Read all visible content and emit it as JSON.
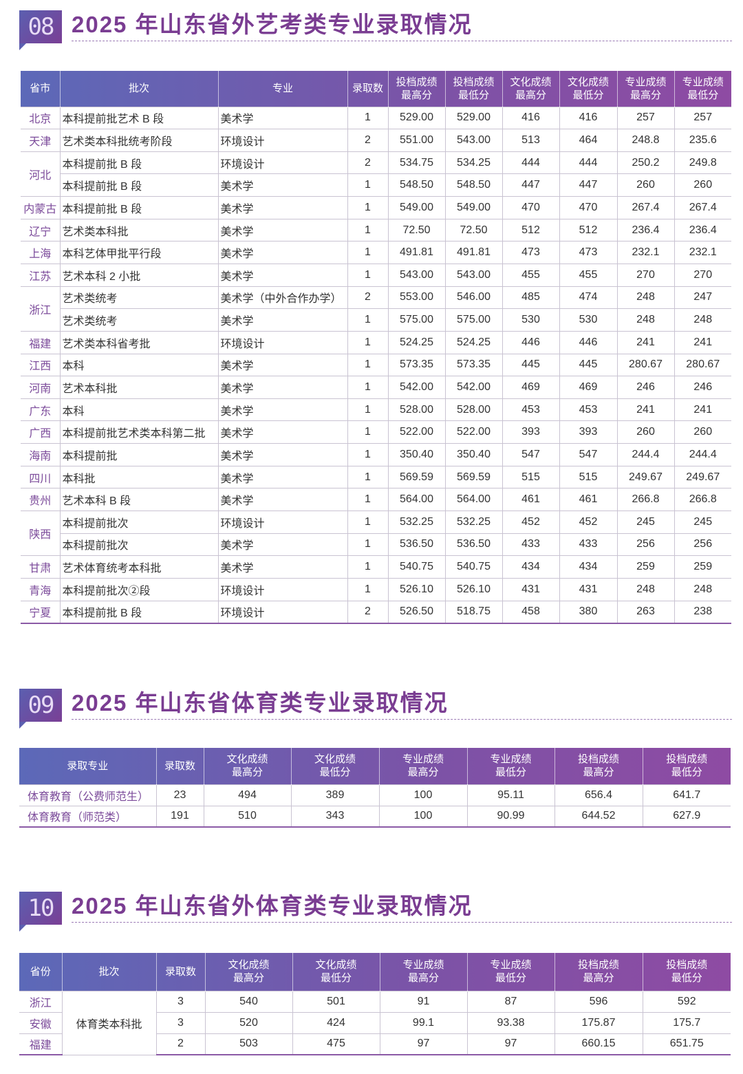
{
  "sections": [
    {
      "number": "08",
      "title": "2025 年山东省外艺考类专业录取情况",
      "table": {
        "headers": [
          "省市",
          "批次",
          "专业",
          "录取数",
          "投档成绩最高分",
          "投档成绩最低分",
          "文化成绩最高分",
          "文化成绩最低分",
          "专业成绩最高分",
          "专业成绩最低分"
        ],
        "rows": [
          [
            "北京",
            "本科提前批艺术 B 段",
            "美术学",
            "1",
            "529.00",
            "529.00",
            "416",
            "416",
            "257",
            "257"
          ],
          [
            "天津",
            "艺术类本科批统考阶段",
            "环境设计",
            "2",
            "551.00",
            "543.00",
            "513",
            "464",
            "248.8",
            "235.6"
          ],
          [
            "河北",
            "本科提前批 B 段",
            "环境设计",
            "2",
            "534.75",
            "534.25",
            "444",
            "444",
            "250.2",
            "249.8"
          ],
          [
            null,
            "本科提前批 B 段",
            "美术学",
            "1",
            "548.50",
            "548.50",
            "447",
            "447",
            "260",
            "260"
          ],
          [
            "内蒙古",
            "本科提前批 B 段",
            "美术学",
            "1",
            "549.00",
            "549.00",
            "470",
            "470",
            "267.4",
            "267.4"
          ],
          [
            "辽宁",
            "艺术类本科批",
            "美术学",
            "1",
            "72.50",
            "72.50",
            "512",
            "512",
            "236.4",
            "236.4"
          ],
          [
            "上海",
            "本科艺体甲批平行段",
            "美术学",
            "1",
            "491.81",
            "491.81",
            "473",
            "473",
            "232.1",
            "232.1"
          ],
          [
            "江苏",
            "艺术本科 2 小批",
            "美术学",
            "1",
            "543.00",
            "543.00",
            "455",
            "455",
            "270",
            "270"
          ],
          [
            "浙江",
            "艺术类统考",
            "美术学（中外合作办学）",
            "2",
            "553.00",
            "546.00",
            "485",
            "474",
            "248",
            "247"
          ],
          [
            null,
            "艺术类统考",
            "美术学",
            "1",
            "575.00",
            "575.00",
            "530",
            "530",
            "248",
            "248"
          ],
          [
            "福建",
            "艺术类本科省考批",
            "环境设计",
            "1",
            "524.25",
            "524.25",
            "446",
            "446",
            "241",
            "241"
          ],
          [
            "江西",
            "本科",
            "美术学",
            "1",
            "573.35",
            "573.35",
            "445",
            "445",
            "280.67",
            "280.67"
          ],
          [
            "河南",
            "艺术本科批",
            "美术学",
            "1",
            "542.00",
            "542.00",
            "469",
            "469",
            "246",
            "246"
          ],
          [
            "广东",
            "本科",
            "美术学",
            "1",
            "528.00",
            "528.00",
            "453",
            "453",
            "241",
            "241"
          ],
          [
            "广西",
            "本科提前批艺术类本科第二批",
            "美术学",
            "1",
            "522.00",
            "522.00",
            "393",
            "393",
            "260",
            "260"
          ],
          [
            "海南",
            "本科提前批",
            "美术学",
            "1",
            "350.40",
            "350.40",
            "547",
            "547",
            "244.4",
            "244.4"
          ],
          [
            "四川",
            "本科批",
            "美术学",
            "1",
            "569.59",
            "569.59",
            "515",
            "515",
            "249.67",
            "249.67"
          ],
          [
            "贵州",
            "艺术本科 B 段",
            "美术学",
            "1",
            "564.00",
            "564.00",
            "461",
            "461",
            "266.8",
            "266.8"
          ],
          [
            "陕西",
            "本科提前批次",
            "环境设计",
            "1",
            "532.25",
            "532.25",
            "452",
            "452",
            "245",
            "245"
          ],
          [
            null,
            "本科提前批次",
            "美术学",
            "1",
            "536.50",
            "536.50",
            "433",
            "433",
            "256",
            "256"
          ],
          [
            "甘肃",
            "艺术体育统考本科批",
            "美术学",
            "1",
            "540.75",
            "540.75",
            "434",
            "434",
            "259",
            "259"
          ],
          [
            "青海",
            "本科提前批次②段",
            "环境设计",
            "1",
            "526.10",
            "526.10",
            "431",
            "431",
            "248",
            "248"
          ],
          [
            "宁夏",
            "本科提前批 B 段",
            "环境设计",
            "2",
            "526.50",
            "518.75",
            "458",
            "380",
            "263",
            "238"
          ]
        ]
      }
    },
    {
      "number": "09",
      "title": "2025 年山东省体育类专业录取情况",
      "table": {
        "headers": [
          "录取专业",
          "录取数",
          "文化成绩最高分",
          "文化成绩最低分",
          "专业成绩最高分",
          "专业成绩最低分",
          "投档成绩最高分",
          "投档成绩最低分"
        ],
        "rows": [
          [
            "体育教育（公费师范生）",
            "23",
            "494",
            "389",
            "100",
            "95.11",
            "656.4",
            "641.7"
          ],
          [
            "体育教育（师范类）",
            "191",
            "510",
            "343",
            "100",
            "90.99",
            "644.52",
            "627.9"
          ]
        ]
      }
    },
    {
      "number": "10",
      "title": "2025 年山东省外体育类专业录取情况",
      "table": {
        "headers": [
          "省份",
          "批次",
          "录取数",
          "文化成绩最高分",
          "文化成绩最低分",
          "专业成绩最高分",
          "专业成绩最低分",
          "投档成绩最高分",
          "投档成绩最低分"
        ],
        "rows": [
          [
            "浙江",
            "体育类本科批",
            "3",
            "540",
            "501",
            "91",
            "87",
            "596",
            "592"
          ],
          [
            "安徽",
            null,
            "3",
            "520",
            "424",
            "99.1",
            "93.38",
            "175.87",
            "175.7"
          ],
          [
            "福建",
            null,
            "2",
            "503",
            "475",
            "97",
            "97",
            "660.15",
            "651.75"
          ]
        ]
      }
    }
  ]
}
